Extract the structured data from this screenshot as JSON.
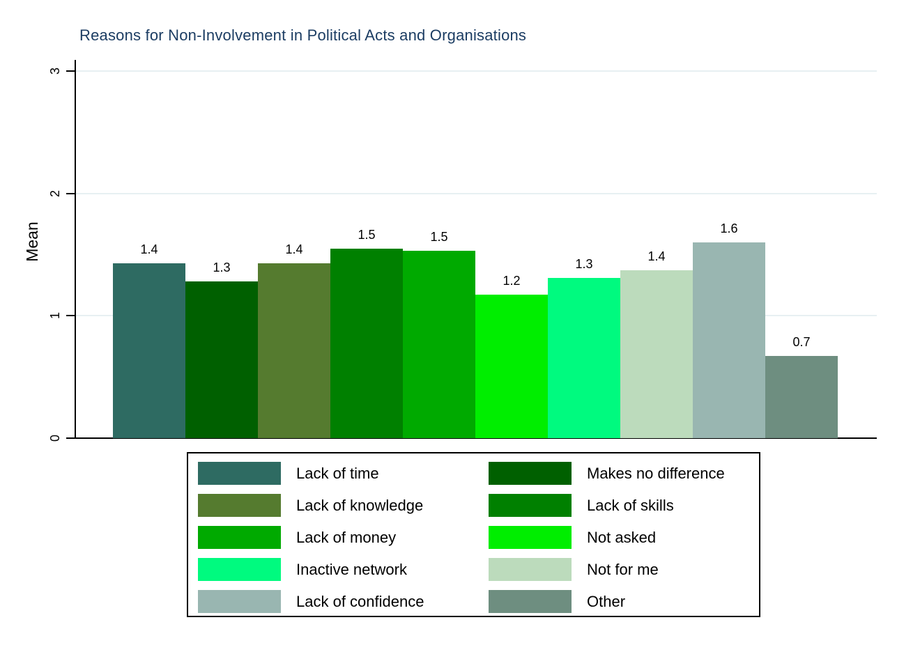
{
  "title": {
    "text": "Reasons for Non-Involvement in Political Acts and Organisations",
    "color": "#1c3d63"
  },
  "chart_data": {
    "type": "bar",
    "title": "Reasons for Non-Involvement in Political Acts and Organisations",
    "xlabel": "",
    "ylabel": "Mean",
    "ylim": [
      0,
      3
    ],
    "yticks": [
      "0",
      "1",
      "2",
      "3"
    ],
    "grid": true,
    "gridline_color": "#e7f0f2",
    "legend_position": "bottom-box-two-columns",
    "series": [
      {
        "name": "Lack of time",
        "value": 1.4,
        "precise_value": 1.43,
        "label": "1.4",
        "color": "#2e6b62"
      },
      {
        "name": "Makes no difference",
        "value": 1.3,
        "precise_value": 1.28,
        "label": "1.3",
        "color": "#006000"
      },
      {
        "name": "Lack of knowledge",
        "value": 1.4,
        "precise_value": 1.43,
        "label": "1.4",
        "color": "#557b2f"
      },
      {
        "name": "Lack of skills",
        "value": 1.5,
        "precise_value": 1.55,
        "label": "1.5",
        "color": "#008000"
      },
      {
        "name": "Lack of money",
        "value": 1.5,
        "precise_value": 1.53,
        "label": "1.5",
        "color": "#00aa00"
      },
      {
        "name": "Not asked",
        "value": 1.2,
        "precise_value": 1.17,
        "label": "1.2",
        "color": "#00ee00"
      },
      {
        "name": "Inactive network",
        "value": 1.3,
        "precise_value": 1.31,
        "label": "1.3",
        "color": "#00fa7f"
      },
      {
        "name": "Not for me",
        "value": 1.4,
        "precise_value": 1.37,
        "label": "1.4",
        "color": "#bcdbbc"
      },
      {
        "name": "Lack of confidence",
        "value": 1.6,
        "precise_value": 1.6,
        "label": "1.6",
        "color": "#99b6b1"
      },
      {
        "name": "Other",
        "value": 0.7,
        "precise_value": 0.67,
        "label": "0.7",
        "color": "#6e8e80"
      }
    ]
  }
}
